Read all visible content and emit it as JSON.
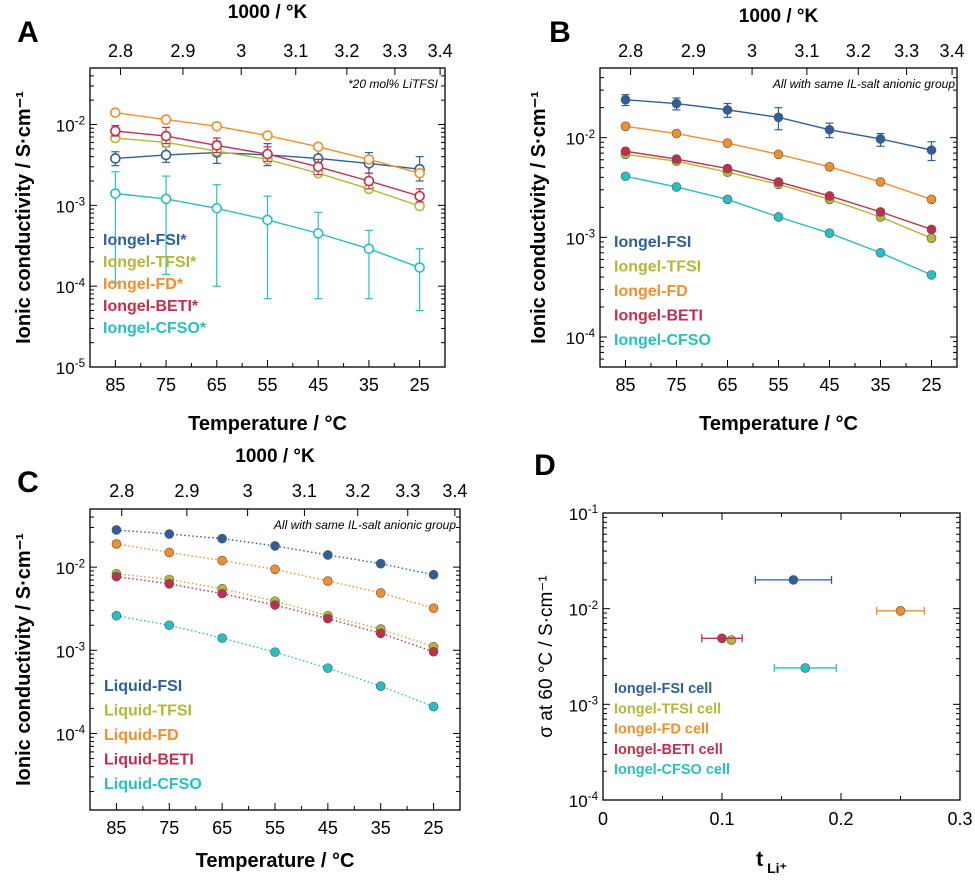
{
  "colors": {
    "FSI": "#2e5f9a",
    "TFSI": "#b5b536",
    "FD": "#f28e2b",
    "BETI": "#c0304d",
    "CFSO": "#26bfc4",
    "axis": "#000000"
  },
  "chart_data": [
    {
      "panel_letter": "A",
      "type": "scatter",
      "x_title": "Temperature / °C",
      "x_ticks": [
        85,
        75,
        65,
        55,
        45,
        35,
        25
      ],
      "xlim": [
        90,
        20
      ],
      "top_title": "1000 / °K",
      "top_ticks": [
        "2.8",
        "2.9",
        "3",
        "3.1",
        "3.2",
        "3.3",
        "3.4"
      ],
      "y_title": "Ionic conductivity / S·cm⁻¹",
      "y_scale": "log",
      "ylim": [
        1e-05,
        0.05
      ],
      "y_ticks": [
        {
          "base": "10",
          "exp": "-2"
        },
        {
          "base": "10",
          "exp": "-3"
        },
        {
          "base": "10",
          "exp": "-4"
        },
        {
          "base": "10",
          "exp": "-5"
        }
      ],
      "note": "*20 mol% LiTFSI",
      "marker": "open",
      "line": "solid",
      "legend_position": "bottom-left",
      "x": [
        85,
        75,
        65,
        55,
        45,
        35,
        25
      ],
      "series": [
        {
          "name": "Iongel-FSI*",
          "color_key": "FSI",
          "values": [
            0.0038,
            0.0042,
            0.0045,
            0.0042,
            0.0038,
            0.0033,
            0.0028
          ],
          "err_low": [
            0.0031,
            0.0034,
            0.0033,
            0.0031,
            0.0029,
            0.0025,
            0.002
          ],
          "err_high": [
            0.0046,
            0.0053,
            0.0062,
            0.0058,
            0.0052,
            0.0045,
            0.004
          ]
        },
        {
          "name": "Iongel-TFSI*",
          "color_key": "TFSI",
          "values": [
            0.0068,
            0.006,
            0.0047,
            0.0037,
            0.0025,
            0.0016,
            0.00098
          ]
        },
        {
          "name": "Iongel-FD*",
          "color_key": "FD",
          "values": [
            0.014,
            0.0115,
            0.0095,
            0.0073,
            0.0053,
            0.0037,
            0.0025
          ]
        },
        {
          "name": "Iongel-BETI*",
          "color_key": "BETI",
          "values": [
            0.0083,
            0.0072,
            0.0055,
            0.0043,
            0.003,
            0.002,
            0.0013
          ],
          "err_low": [
            0.0072,
            0.0058,
            0.0045,
            0.0035,
            0.0024,
            0.0016,
            0.0011
          ],
          "err_high": [
            0.0097,
            0.0092,
            0.0068,
            0.0053,
            0.0037,
            0.0025,
            0.0016
          ]
        },
        {
          "name": "Iongel-CFSO*",
          "color_key": "CFSO",
          "values": [
            0.0014,
            0.0012,
            0.00092,
            0.00066,
            0.00045,
            0.00029,
            0.00017
          ],
          "err_low": [
            0.00011,
            0.00014,
            0.0001,
            7e-05,
            7e-05,
            7e-05,
            5e-05
          ],
          "err_high": [
            0.0026,
            0.0023,
            0.0018,
            0.0013,
            0.00082,
            0.00049,
            0.00029
          ]
        }
      ]
    },
    {
      "panel_letter": "B",
      "type": "scatter",
      "x_title": "Temperature / °C",
      "x_ticks": [
        85,
        75,
        65,
        55,
        45,
        35,
        25
      ],
      "xlim": [
        90,
        20
      ],
      "top_title": "1000 / °K",
      "top_ticks": [
        "2.8",
        "2.9",
        "3",
        "3.1",
        "3.2",
        "3.3",
        "3.4"
      ],
      "y_title": "Ionic conductivity / S·cm⁻¹",
      "y_scale": "log",
      "ylim": [
        5e-05,
        0.05
      ],
      "y_ticks": [
        {
          "base": "10",
          "exp": "-2"
        },
        {
          "base": "10",
          "exp": "-3"
        },
        {
          "base": "10",
          "exp": "-4"
        }
      ],
      "note": "All with same IL-salt anionic group",
      "marker": "filled",
      "line": "solid",
      "legend_position": "bottom-left",
      "x": [
        85,
        75,
        65,
        55,
        45,
        35,
        25
      ],
      "series": [
        {
          "name": "Iongel-FSI",
          "color_key": "FSI",
          "values": [
            0.024,
            0.022,
            0.019,
            0.016,
            0.012,
            0.0097,
            0.0075
          ],
          "err_low": [
            0.021,
            0.019,
            0.016,
            0.012,
            0.01,
            0.0082,
            0.0059
          ],
          "err_high": [
            0.027,
            0.025,
            0.022,
            0.02,
            0.014,
            0.011,
            0.0091
          ]
        },
        {
          "name": "Iongel-TFSI",
          "color_key": "TFSI",
          "values": [
            0.0068,
            0.0058,
            0.0045,
            0.0034,
            0.0024,
            0.0016,
            0.00098
          ]
        },
        {
          "name": "Iongel-FD",
          "color_key": "FD",
          "values": [
            0.013,
            0.011,
            0.0088,
            0.0068,
            0.0051,
            0.0036,
            0.0024
          ]
        },
        {
          "name": "Iongel-BETI",
          "color_key": "BETI",
          "values": [
            0.0073,
            0.0061,
            0.0049,
            0.0036,
            0.0026,
            0.0018,
            0.0012
          ]
        },
        {
          "name": "Iongel-CFSO",
          "color_key": "CFSO",
          "values": [
            0.0041,
            0.0032,
            0.0024,
            0.0016,
            0.0011,
            0.0007,
            0.00042
          ]
        }
      ]
    },
    {
      "panel_letter": "C",
      "type": "scatter",
      "x_title": "Temperature / °C",
      "x_ticks": [
        85,
        75,
        65,
        55,
        45,
        35,
        25
      ],
      "xlim": [
        90,
        20
      ],
      "top_title": "1000 / °K",
      "top_ticks": [
        "2.8",
        "2.9",
        "3",
        "3.1",
        "3.2",
        "3.3",
        "3.4"
      ],
      "y_title": "Ionic conductivity / S·cm⁻¹",
      "y_scale": "log",
      "ylim": [
        1.2e-05,
        0.05
      ],
      "y_ticks": [
        {
          "base": "10",
          "exp": "-2"
        },
        {
          "base": "10",
          "exp": "-3"
        },
        {
          "base": "10",
          "exp": "-4"
        }
      ],
      "note": "All with same IL-salt anionic group",
      "marker": "filled",
      "line": "dotted",
      "legend_position": "bottom-left",
      "x": [
        85,
        75,
        65,
        55,
        45,
        35,
        25
      ],
      "series": [
        {
          "name": "Liquid-FSI",
          "color_key": "FSI",
          "values": [
            0.028,
            0.025,
            0.022,
            0.018,
            0.014,
            0.011,
            0.0081
          ]
        },
        {
          "name": "Liquid-TFSI",
          "color_key": "TFSI",
          "values": [
            0.0083,
            0.0071,
            0.0055,
            0.0039,
            0.0026,
            0.0018,
            0.0011
          ]
        },
        {
          "name": "Liquid-FD",
          "color_key": "FD",
          "values": [
            0.019,
            0.015,
            0.012,
            0.0094,
            0.0068,
            0.0049,
            0.0032
          ]
        },
        {
          "name": "Liquid-BETI",
          "color_key": "BETI",
          "values": [
            0.0077,
            0.0063,
            0.0048,
            0.0035,
            0.0024,
            0.0016,
            0.00096
          ]
        },
        {
          "name": "Liquid-CFSO",
          "color_key": "CFSO",
          "values": [
            0.0026,
            0.002,
            0.0014,
            0.00095,
            0.00061,
            0.00037,
            0.00021
          ]
        }
      ]
    },
    {
      "panel_letter": "D",
      "type": "scatter",
      "x_title": "t",
      "x_title_sub": "Li⁺",
      "x_ticks": [
        "0",
        "0.1",
        "0.2",
        "0.3"
      ],
      "xlim": [
        0,
        0.3
      ],
      "y_title": "σ at 60 °C / S·cm⁻¹",
      "y_scale": "log",
      "ylim": [
        0.0001,
        0.1
      ],
      "y_ticks": [
        {
          "base": "10",
          "exp": "-1"
        },
        {
          "base": "10",
          "exp": "-2"
        },
        {
          "base": "10",
          "exp": "-3"
        },
        {
          "base": "10",
          "exp": "-4"
        }
      ],
      "marker": "filled",
      "legend_position": "bottom-left",
      "series": [
        {
          "name": "Iongel-FSI cell",
          "color_key": "FSI",
          "x": 0.16,
          "y": 0.02,
          "xerr": 0.032
        },
        {
          "name": "Iongel-TFSI cell",
          "color_key": "TFSI",
          "x": 0.108,
          "y": 0.0047,
          "xerr": 0
        },
        {
          "name": "Iongel-FD cell",
          "color_key": "FD",
          "x": 0.25,
          "y": 0.0095,
          "xerr": 0.02
        },
        {
          "name": "Iongel-BETI cell",
          "color_key": "BETI",
          "x": 0.1,
          "y": 0.0049,
          "xerr": 0.017
        },
        {
          "name": "Iongel-CFSO cell",
          "color_key": "CFSO",
          "x": 0.17,
          "y": 0.0024,
          "xerr": 0.026
        }
      ]
    }
  ]
}
